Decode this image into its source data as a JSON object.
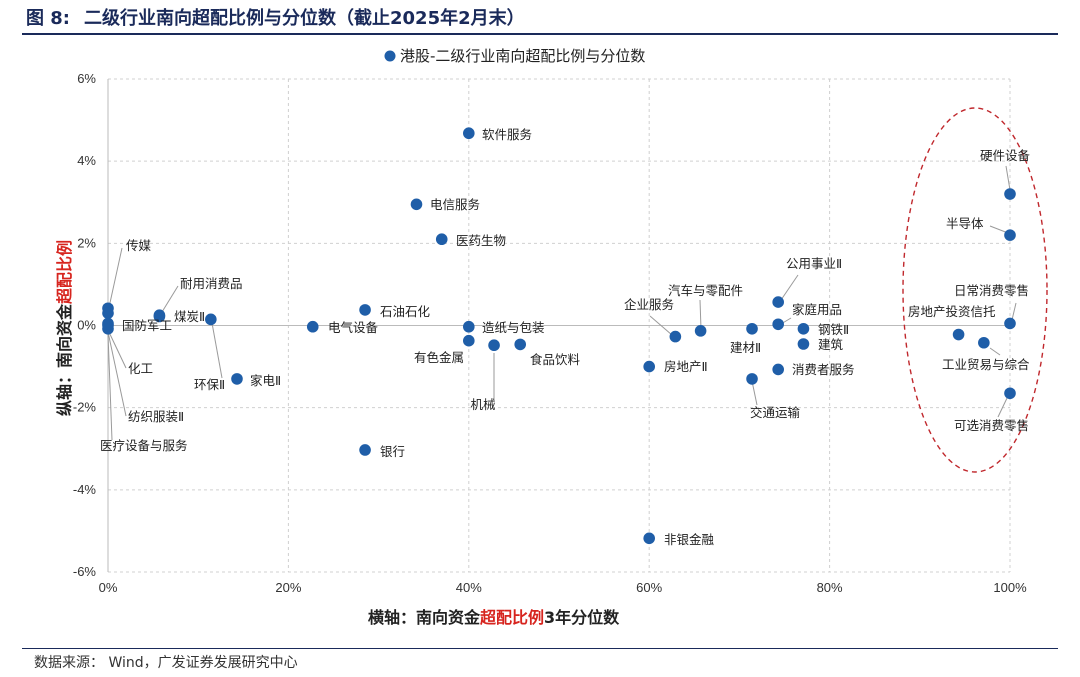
{
  "figure": {
    "number": "图  8:",
    "title": "二级行业南向超配比例与分位数（截止2025年2月末）",
    "source": "数据来源：  Wind，广发证券发展研究中心"
  },
  "colors": {
    "point": "#1f5ea8",
    "grid": "#d0d0d0",
    "leader": "#9a9a9a",
    "highlight": "#c0282d",
    "title": "#1a2a5a"
  },
  "chart_data": {
    "type": "scatter",
    "title": "港股-二级行业南向超配比例与分位数",
    "xlabel_parts": [
      "横轴：南向资金",
      "超配比例",
      "3年分位数"
    ],
    "ylabel_parts": [
      "纵轴：南向资金",
      "超配比例"
    ],
    "xlim": [
      0,
      100
    ],
    "ylim": [
      -6,
      6
    ],
    "xticks": [
      0,
      20,
      40,
      60,
      80,
      100
    ],
    "xtick_labels": [
      "0%",
      "20%",
      "40%",
      "60%",
      "80%",
      "100%"
    ],
    "yticks": [
      -6,
      -4,
      -2,
      0,
      2,
      4,
      6
    ],
    "ytick_labels": [
      "-6%",
      "-4%",
      "-2%",
      "0%",
      "2%",
      "4%",
      "6%"
    ],
    "grid": true,
    "legend_position": "top-center",
    "annotation": "dashed red ellipse highlighting industries near the 100% percentile",
    "points": [
      {
        "label": "软件服务",
        "x": 40.0,
        "y": 4.68
      },
      {
        "label": "电信服务",
        "x": 34.2,
        "y": 2.95
      },
      {
        "label": "医药生物",
        "x": 37.0,
        "y": 2.1
      },
      {
        "label": "石油石化",
        "x": 28.5,
        "y": 0.38
      },
      {
        "label": "电气设备",
        "x": 22.7,
        "y": -0.03
      },
      {
        "label": "造纸与包装",
        "x": 40.0,
        "y": -0.03
      },
      {
        "label": "有色金属",
        "x": 40.0,
        "y": -0.37
      },
      {
        "label": "机械",
        "x": 42.8,
        "y": -0.48
      },
      {
        "label": "食品饮料",
        "x": 45.7,
        "y": -0.46
      },
      {
        "label": "银行",
        "x": 28.5,
        "y": -3.03
      },
      {
        "label": "非银金融",
        "x": 60.0,
        "y": -5.18
      },
      {
        "label": "房地产Ⅱ",
        "x": 60.0,
        "y": -1.0
      },
      {
        "label": "企业服务",
        "x": 62.9,
        "y": -0.27
      },
      {
        "label": "汽车与零配件",
        "x": 65.7,
        "y": -0.13
      },
      {
        "label": "建材Ⅱ",
        "x": 71.4,
        "y": -0.08
      },
      {
        "label": "公用事业Ⅱ",
        "x": 74.3,
        "y": 0.57
      },
      {
        "label": "家庭用品",
        "x": 74.3,
        "y": 0.03
      },
      {
        "label": "钢铁Ⅱ",
        "x": 77.1,
        "y": -0.08
      },
      {
        "label": "建筑",
        "x": 77.1,
        "y": -0.45
      },
      {
        "label": "交通运输",
        "x": 71.4,
        "y": -1.3
      },
      {
        "label": "消费者服务",
        "x": 74.3,
        "y": -1.07
      },
      {
        "label": "硬件设备",
        "x": 100.0,
        "y": 3.2
      },
      {
        "label": "半导体",
        "x": 100.0,
        "y": 2.2
      },
      {
        "label": "日常消费零售",
        "x": 100.0,
        "y": 0.05
      },
      {
        "label": "房地产投资信托",
        "x": 94.3,
        "y": -0.22
      },
      {
        "label": "工业贸易与综合",
        "x": 97.1,
        "y": -0.42
      },
      {
        "label": "可选消费零售",
        "x": 100.0,
        "y": -1.65
      },
      {
        "label": "煤炭Ⅱ",
        "x": 5.7,
        "y": 0.22
      },
      {
        "label": "耐用消费品",
        "x": 5.7,
        "y": 0.25
      },
      {
        "label": "环保Ⅱ",
        "x": 11.4,
        "y": 0.15
      },
      {
        "label": "家电Ⅱ",
        "x": 14.3,
        "y": -1.3
      },
      {
        "label": "传媒",
        "x": 0.0,
        "y": 0.42
      },
      {
        "label": "国防军工",
        "x": 0.0,
        "y": 0.05
      },
      {
        "label": "化工",
        "x": 0.0,
        "y": -0.08
      },
      {
        "label": "纺织服装Ⅱ",
        "x": 0.0,
        "y": 0.0
      },
      {
        "label": "医疗设备与服务",
        "x": 0.0,
        "y": 0.3
      }
    ]
  }
}
